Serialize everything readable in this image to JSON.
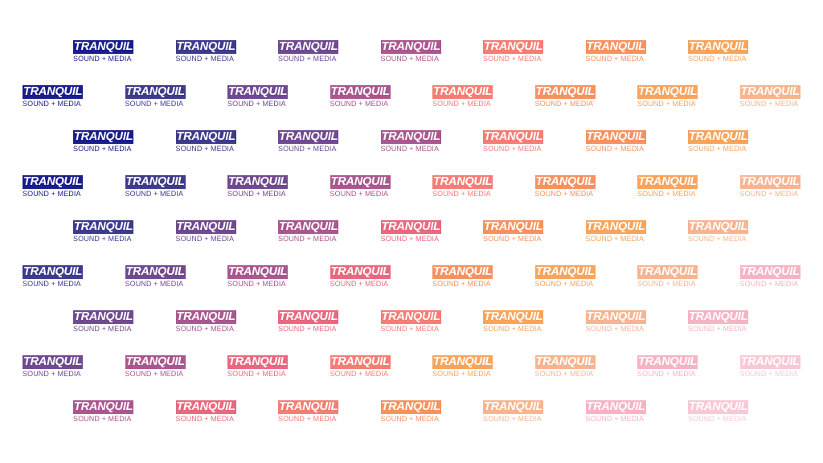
{
  "logo": {
    "wordmark": "TRANQUIL",
    "tagline": "SOUND + MEDIA"
  },
  "palette": [
    "#1a1e8a",
    "#3e3a8c",
    "#6f4a90",
    "#a9578f",
    "#e8687f",
    "#f47d74",
    "#f69260",
    "#f8a45c",
    "#f7b490",
    "#f6b3c4",
    "#f7c8d6"
  ],
  "rows": [
    {
      "columns": 7,
      "shade_start": 0
    },
    {
      "columns": 8,
      "shade_start": 0
    },
    {
      "columns": 7,
      "shade_start": 0
    },
    {
      "columns": 8,
      "shade_start": 0
    },
    {
      "columns": 7,
      "shade_start": 1
    },
    {
      "columns": 8,
      "shade_start": 1
    },
    {
      "columns": 7,
      "shade_start": 2
    },
    {
      "columns": 8,
      "shade_start": 2
    },
    {
      "columns": 7,
      "shade_start": 3
    }
  ]
}
